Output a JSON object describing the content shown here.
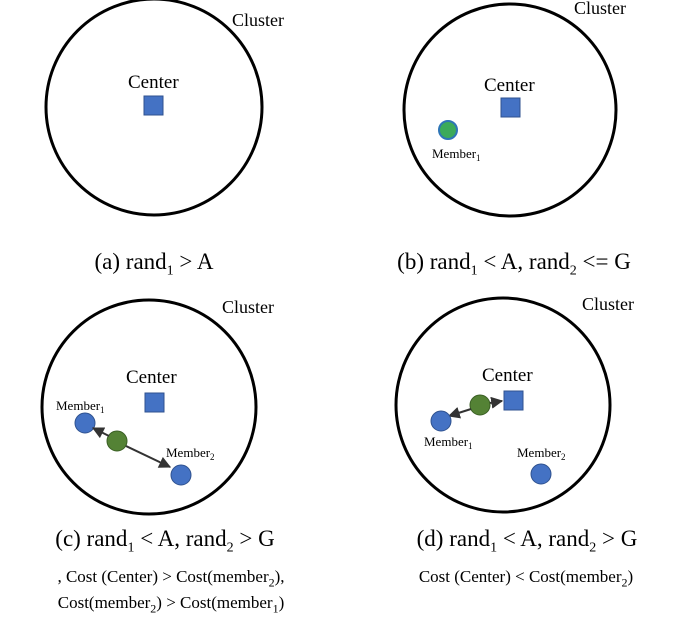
{
  "colors": {
    "center": "#4472C4",
    "member": "#4472C4",
    "candidate": "#548235",
    "candidate_outline": "#2E75B6",
    "outline": "#000000"
  },
  "icons": {
    "center": "blue-square-icon",
    "member": "blue-circle-icon",
    "candidate": "green-circle-icon"
  },
  "panel_a": {
    "cluster_label": "Cluster",
    "center_label": "Center",
    "caption": {
      "prefix": "(a) rand",
      "sub": "1",
      "suffix": " > A"
    }
  },
  "panel_b": {
    "cluster_label": "Cluster",
    "center_label": "Center",
    "member1": {
      "base": "Member",
      "sub": "1"
    },
    "caption": {
      "p1": "(b) rand",
      "s1": "1",
      "p2": " < A, rand",
      "s2": "2",
      "p3": " <= G"
    }
  },
  "panel_c": {
    "cluster_label": "Cluster",
    "center_label": "Center",
    "member1": {
      "base": "Member",
      "sub": "1"
    },
    "member2": {
      "base": "Member",
      "sub": "2"
    },
    "caption": {
      "p1": "(c) rand",
      "s1": "1",
      "p2": " < A, rand",
      "s2": "2",
      "p3": " > G"
    },
    "condition_line1": {
      "p1": ", Cost (Center) > Cost(member",
      "s1": "2",
      "p2": "),"
    },
    "condition_line2": {
      "p1": "Cost(member",
      "s1": "2",
      "p2": ") > Cost(member",
      "s2": "1",
      "p3": ")"
    }
  },
  "panel_d": {
    "cluster_label": "Cluster",
    "center_label": "Center",
    "member1": {
      "base": "Member",
      "sub": "1"
    },
    "member2": {
      "base": "Member",
      "sub": "2"
    },
    "caption": {
      "p1": "(d) rand",
      "s1": "1",
      "p2": " < A, rand",
      "s2": "2",
      "p3": " > G"
    },
    "condition_line1": {
      "p1": "Cost (Center) < Cost(member",
      "s1": "2",
      "p2": ")"
    }
  }
}
